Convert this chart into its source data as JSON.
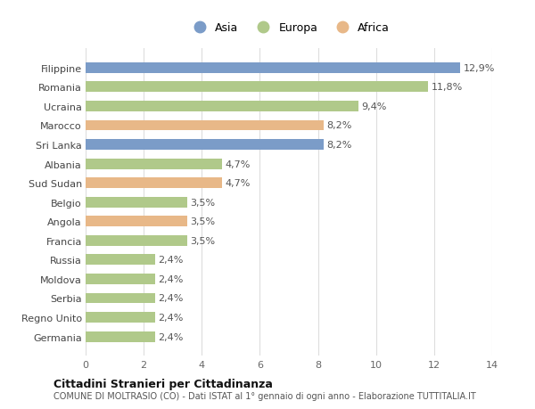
{
  "categories": [
    "Filippine",
    "Romania",
    "Ucraina",
    "Marocco",
    "Sri Lanka",
    "Albania",
    "Sud Sudan",
    "Belgio",
    "Angola",
    "Francia",
    "Russia",
    "Moldova",
    "Serbia",
    "Regno Unito",
    "Germania"
  ],
  "values": [
    12.9,
    11.8,
    9.4,
    8.2,
    8.2,
    4.7,
    4.7,
    3.5,
    3.5,
    3.5,
    2.4,
    2.4,
    2.4,
    2.4,
    2.4
  ],
  "labels": [
    "12,9%",
    "11,8%",
    "9,4%",
    "8,2%",
    "8,2%",
    "4,7%",
    "4,7%",
    "3,5%",
    "3,5%",
    "3,5%",
    "2,4%",
    "2,4%",
    "2,4%",
    "2,4%",
    "2,4%"
  ],
  "continents": [
    "Asia",
    "Europa",
    "Europa",
    "Africa",
    "Asia",
    "Europa",
    "Africa",
    "Europa",
    "Africa",
    "Europa",
    "Europa",
    "Europa",
    "Europa",
    "Europa",
    "Europa"
  ],
  "colors": {
    "Asia": "#7b9cc8",
    "Europa": "#b0c98a",
    "Africa": "#e8b888"
  },
  "xlim": [
    0,
    14
  ],
  "xticks": [
    0,
    2,
    4,
    6,
    8,
    10,
    12,
    14
  ],
  "title": "Cittadini Stranieri per Cittadinanza",
  "subtitle": "COMUNE DI MOLTRASIO (CO) - Dati ISTAT al 1° gennaio di ogni anno - Elaborazione TUTTITALIA.IT",
  "bg_color": "#ffffff",
  "grid_color": "#dddddd",
  "label_fontsize": 8,
  "tick_fontsize": 8,
  "bar_height": 0.55
}
